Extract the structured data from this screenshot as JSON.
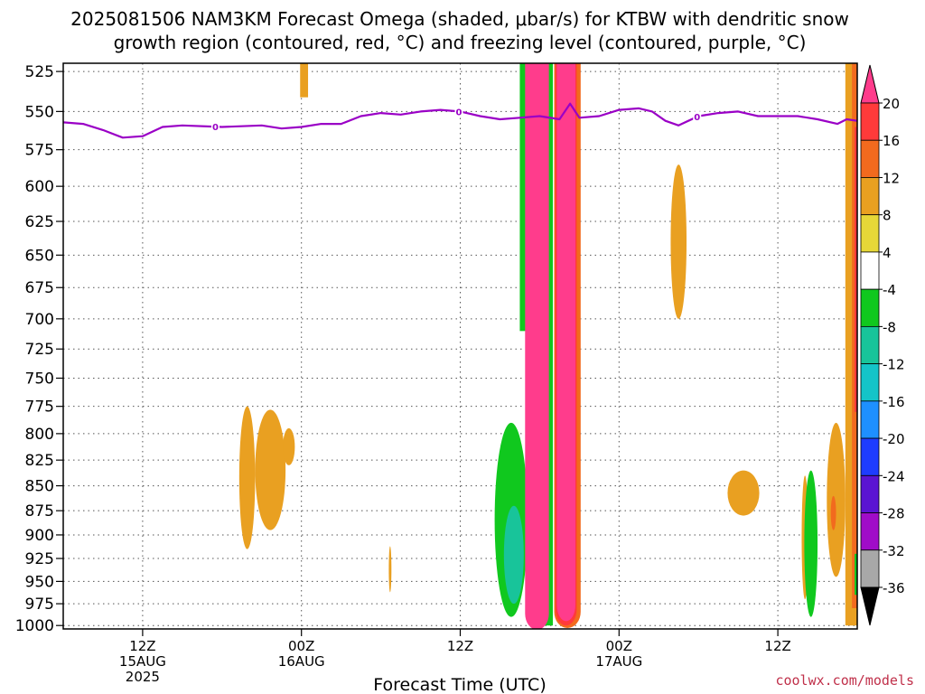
{
  "title_line1": "2025081506 NAM3KM Forecast Omega (shaded, μbar/s) for KTBW with dendritic snow",
  "title_line2": "growth region (contoured, red, °C) and freezing level (contoured, purple, °C)",
  "credit": "coolwx.com/models",
  "colors": {
    "ground": "#a0522d",
    "freezing_line": "#9a00c6",
    "gridline": "#555555"
  },
  "chart_data": {
    "type": "heatmap",
    "xlabel": "Forecast Time (UTC)",
    "ylabel": "",
    "y_unit": "hPa",
    "y_inverted": true,
    "ylim": [
      1000,
      520
    ],
    "grid": true,
    "legend_position": "right",
    "yticks": [
      525,
      550,
      575,
      600,
      625,
      650,
      675,
      700,
      725,
      750,
      775,
      800,
      825,
      850,
      875,
      900,
      925,
      950,
      975,
      1000
    ],
    "x_range_hours": [
      6,
      66
    ],
    "xticks": [
      {
        "hour": 12,
        "lines": [
          "12Z",
          "15AUG",
          "2025"
        ]
      },
      {
        "hour": 24,
        "lines": [
          "00Z",
          "16AUG"
        ]
      },
      {
        "hour": 36,
        "lines": [
          "12Z"
        ]
      },
      {
        "hour": 48,
        "lines": [
          "00Z",
          "17AUG"
        ]
      },
      {
        "hour": 60,
        "lines": [
          "12Z"
        ]
      }
    ],
    "colorbar": {
      "unit": "μbar/s",
      "labels": [
        "20",
        "16",
        "12",
        "8",
        "4",
        "-4",
        "-8",
        "-12",
        "-16",
        "-20",
        "-24",
        "-28",
        "-32",
        "-36"
      ],
      "bins": [
        {
          "from": 16,
          "to": 20,
          "color": "#ff3a3a"
        },
        {
          "from": 12,
          "to": 16,
          "color": "#f26a1e"
        },
        {
          "from": 8,
          "to": 12,
          "color": "#e9a021"
        },
        {
          "from": 4,
          "to": 8,
          "color": "#e6d738"
        },
        {
          "from": -4,
          "to": 4,
          "color": "#ffffff"
        },
        {
          "from": -8,
          "to": -4,
          "color": "#10c81e"
        },
        {
          "from": -12,
          "to": -8,
          "color": "#18c49a"
        },
        {
          "from": -16,
          "to": -12,
          "color": "#14c4c8"
        },
        {
          "from": -20,
          "to": -16,
          "color": "#1e90ff"
        },
        {
          "from": -24,
          "to": -20,
          "color": "#1e3cff"
        },
        {
          "from": -28,
          "to": -24,
          "color": "#5a14d2"
        },
        {
          "from": -32,
          "to": -28,
          "color": "#a00cc8"
        },
        {
          "from": -36,
          "to": -32,
          "color": "#a8a8a8"
        }
      ],
      "top_extend_color": "#ff3c8c",
      "bottom_extend_color": "#000000"
    },
    "freezing_level": {
      "label": "0",
      "label_hours": [
        17.5,
        35.9,
        53.9
      ],
      "hours": [
        6,
        7.5,
        9,
        10.5,
        12,
        13.5,
        15,
        18,
        21,
        22.5,
        24,
        25.5,
        27,
        28.5,
        30,
        31.5,
        33,
        34.5,
        36,
        37.5,
        39,
        40.5,
        42,
        43.5,
        44.3,
        45,
        46.5,
        48,
        49.5,
        50.5,
        51.5,
        52.5,
        54,
        55.5,
        57,
        58.5,
        60,
        61.5,
        63,
        64.5,
        65.2,
        66
      ],
      "pressure": [
        557,
        558,
        562,
        567,
        566,
        560,
        559,
        560,
        559,
        561,
        560,
        558,
        558,
        553,
        551,
        552,
        550,
        549,
        550,
        553,
        555,
        554,
        553,
        555,
        545,
        554,
        553,
        549,
        548,
        550,
        556,
        559,
        553,
        551,
        550,
        553,
        553,
        553,
        555,
        558,
        555,
        556
      ]
    },
    "omega_regions": [
      {
        "value": 8,
        "h0": 19.3,
        "h1": 20.5,
        "p_top": 775,
        "p_bot": 915,
        "shape": "ellipse"
      },
      {
        "value": 8,
        "h0": 20.5,
        "h1": 22.8,
        "p_top": 778,
        "p_bot": 895,
        "shape": "ellipse"
      },
      {
        "value": 8,
        "h0": 22.6,
        "h1": 23.5,
        "p_top": 795,
        "p_bot": 830,
        "shape": "ellipse"
      },
      {
        "value": 8,
        "h0": 23.9,
        "h1": 24.5,
        "p_top": 520,
        "p_bot": 541,
        "shape": "rect"
      },
      {
        "value": 8,
        "h0": 30.6,
        "h1": 30.8,
        "p_top": 912,
        "p_bot": 962,
        "shape": "ellipse"
      },
      {
        "value": 8,
        "h0": 51.9,
        "h1": 53.1,
        "p_top": 585,
        "p_bot": 700,
        "shape": "ellipse"
      },
      {
        "value": 8,
        "h0": 56.2,
        "h1": 58.6,
        "p_top": 835,
        "p_bot": 880,
        "shape": "ellipse"
      },
      {
        "value": -8,
        "h0": 38.6,
        "h1": 41.1,
        "p_top": 790,
        "p_bot": 990,
        "shape": "ellipse"
      },
      {
        "value": -12,
        "h0": 39.3,
        "h1": 40.8,
        "p_top": 870,
        "p_bot": 975,
        "shape": "ellipse"
      },
      {
        "value": -8,
        "h0": 40.5,
        "h1": 42.5,
        "p_top": 520,
        "p_bot": 710,
        "shape": "rect"
      },
      {
        "value": -8,
        "h0": 42.2,
        "h1": 43.0,
        "p_top": 520,
        "p_bot": 1000,
        "shape": "rect"
      },
      {
        "value": 20,
        "h0": 40.9,
        "h1": 42.7,
        "p_top": 520,
        "p_bot": 1005,
        "shape": "capsule"
      },
      {
        "value": 12,
        "h0": 43.1,
        "h1": 45.1,
        "p_top": 520,
        "p_bot": 1003,
        "shape": "capsule"
      },
      {
        "value": 16,
        "h0": 43.2,
        "h1": 44.8,
        "p_top": 520,
        "p_bot": 1000,
        "shape": "capsule"
      },
      {
        "value": 20,
        "h0": 43.3,
        "h1": 44.7,
        "p_top": 520,
        "p_bot": 995,
        "shape": "capsule"
      },
      {
        "value": 8,
        "h0": 61.8,
        "h1": 62.3,
        "p_top": 840,
        "p_bot": 970,
        "shape": "ellipse"
      },
      {
        "value": -8,
        "h0": 62.0,
        "h1": 63.0,
        "p_top": 835,
        "p_bot": 990,
        "shape": "ellipse"
      },
      {
        "value": 8,
        "h0": 63.7,
        "h1": 65.1,
        "p_top": 790,
        "p_bot": 945,
        "shape": "ellipse"
      },
      {
        "value": 12,
        "h0": 64.0,
        "h1": 64.4,
        "p_top": 860,
        "p_bot": 895,
        "shape": "ellipse"
      },
      {
        "value": 8,
        "h0": 65.1,
        "h1": 66.0,
        "p_top": 520,
        "p_bot": 1000,
        "shape": "rect"
      },
      {
        "value": 12,
        "h0": 65.6,
        "h1": 66.0,
        "p_top": 520,
        "p_bot": 980,
        "shape": "rect"
      },
      {
        "value": 16,
        "h0": 65.8,
        "h1": 66.0,
        "p_top": 560,
        "p_bot": 780,
        "shape": "rect"
      },
      {
        "value": -8,
        "h0": 65.8,
        "h1": 66.0,
        "p_top": 920,
        "p_bot": 965,
        "shape": "rect"
      }
    ]
  }
}
